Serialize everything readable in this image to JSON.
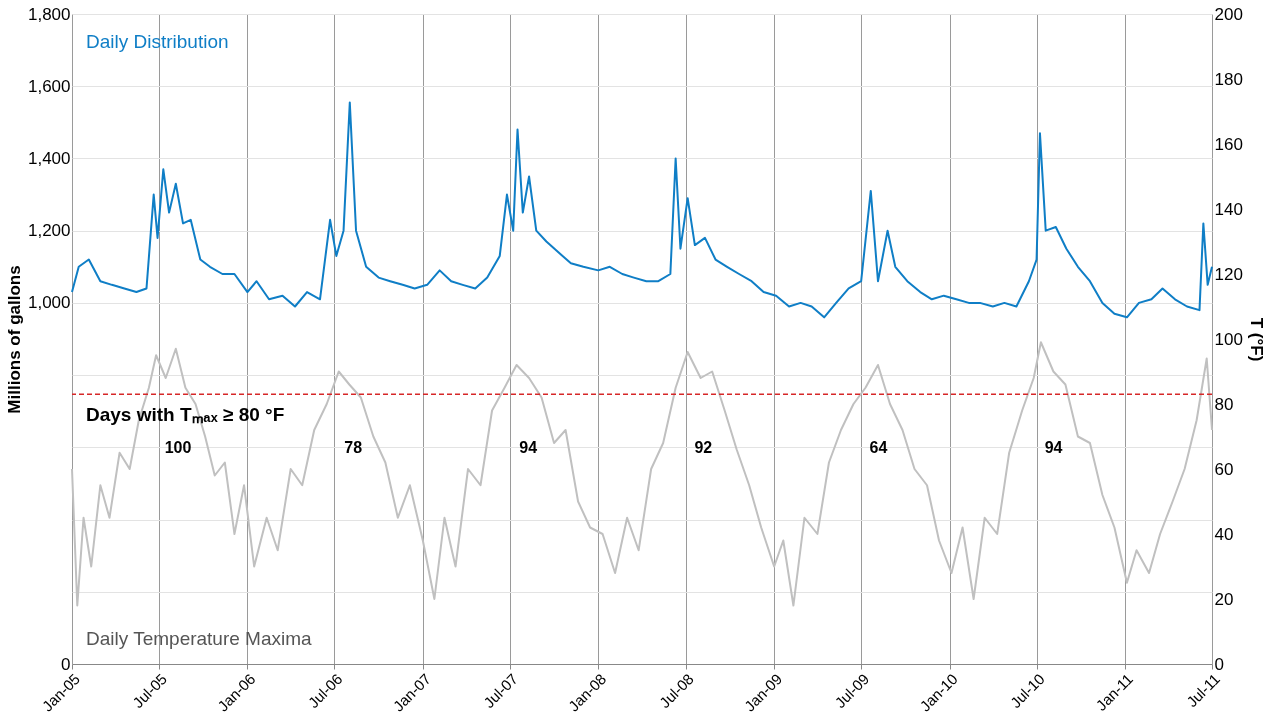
{
  "chart_data": {
    "type": "line",
    "xlabel": null,
    "ylabel": "Millions of gallons",
    "y2label": "T (°F)",
    "xlim": [
      "2005-01-01",
      "2011-07-01"
    ],
    "xticks": [
      {
        "value": "2005-01-01",
        "label": "Jan-05"
      },
      {
        "value": "2005-07-01",
        "label": "Jul-05"
      },
      {
        "value": "2006-01-01",
        "label": "Jan-06"
      },
      {
        "value": "2006-07-01",
        "label": "Jul-06"
      },
      {
        "value": "2007-01-01",
        "label": "Jan-07"
      },
      {
        "value": "2007-07-01",
        "label": "Jul-07"
      },
      {
        "value": "2008-01-01",
        "label": "Jan-08"
      },
      {
        "value": "2008-07-01",
        "label": "Jul-08"
      },
      {
        "value": "2009-01-01",
        "label": "Jan-09"
      },
      {
        "value": "2009-07-01",
        "label": "Jul-09"
      },
      {
        "value": "2010-01-01",
        "label": "Jan-10"
      },
      {
        "value": "2010-07-01",
        "label": "Jul-10"
      },
      {
        "value": "2011-01-01",
        "label": "Jan-11"
      },
      {
        "value": "2011-07-01",
        "label": "Jul-11"
      }
    ],
    "ylim": [
      0,
      1800
    ],
    "yticks": [
      0,
      {
        "value": 200,
        "label": null
      },
      {
        "value": 400,
        "label": null
      },
      {
        "value": 600,
        "label": null
      },
      {
        "value": 800,
        "label": null
      },
      {
        "value": 1000,
        "label": "1,000"
      },
      {
        "value": 1200,
        "label": "1,200"
      },
      {
        "value": 1400,
        "label": "1,400"
      },
      {
        "value": 1600,
        "label": "1,600"
      },
      {
        "value": 1800,
        "label": "1,800"
      }
    ],
    "y2lim": [
      0,
      200
    ],
    "y2ticks": [
      0,
      20,
      40,
      60,
      80,
      100,
      120,
      140,
      160,
      180,
      200
    ],
    "grid": true,
    "marker": "none",
    "line_style": "solid",
    "series": [
      {
        "name": "Daily Temperature Maxima",
        "color": "#c0c0c0",
        "axis": "y2",
        "x": [
          "2005-01-01",
          "2005-01-12",
          "2005-01-25",
          "2005-02-10",
          "2005-03-01",
          "2005-03-20",
          "2005-04-10",
          "2005-05-01",
          "2005-05-20",
          "2005-06-10",
          "2005-06-25",
          "2005-07-15",
          "2005-08-05",
          "2005-08-25",
          "2005-09-15",
          "2005-10-05",
          "2005-10-25",
          "2005-11-15",
          "2005-12-05",
          "2005-12-25",
          "2006-01-15",
          "2006-02-10",
          "2006-03-05",
          "2006-04-01",
          "2006-04-25",
          "2006-05-20",
          "2006-06-15",
          "2006-07-10",
          "2006-08-01",
          "2006-08-25",
          "2006-09-20",
          "2006-10-15",
          "2006-11-10",
          "2006-12-05",
          "2007-01-01",
          "2007-01-25",
          "2007-02-15",
          "2007-03-10",
          "2007-04-05",
          "2007-05-01",
          "2007-05-25",
          "2007-06-20",
          "2007-07-15",
          "2007-08-10",
          "2007-09-05",
          "2007-10-01",
          "2007-10-25",
          "2007-11-20",
          "2007-12-15",
          "2008-01-10",
          "2008-02-05",
          "2008-03-01",
          "2008-03-25",
          "2008-04-20",
          "2008-05-15",
          "2008-06-10",
          "2008-07-05",
          "2008-08-01",
          "2008-08-25",
          "2008-09-20",
          "2008-10-15",
          "2008-11-10",
          "2008-12-05",
          "2009-01-01",
          "2009-01-20",
          "2009-02-10",
          "2009-03-05",
          "2009-04-01",
          "2009-04-25",
          "2009-05-20",
          "2009-06-15",
          "2009-07-10",
          "2009-08-05",
          "2009-08-30",
          "2009-09-25",
          "2009-10-20",
          "2009-11-15",
          "2009-12-10",
          "2010-01-05",
          "2010-01-28",
          "2010-02-20",
          "2010-03-15",
          "2010-04-10",
          "2010-05-05",
          "2010-06-01",
          "2010-06-25",
          "2010-07-10",
          "2010-08-05",
          "2010-08-30",
          "2010-09-25",
          "2010-10-20",
          "2010-11-15",
          "2010-12-10",
          "2011-01-05",
          "2011-01-25",
          "2011-02-20",
          "2011-03-15",
          "2011-04-10",
          "2011-05-05",
          "2011-05-30",
          "2011-06-20",
          "2011-07-01"
        ],
        "values": [
          60,
          18,
          45,
          30,
          55,
          45,
          65,
          60,
          75,
          85,
          95,
          88,
          97,
          85,
          80,
          70,
          58,
          62,
          40,
          55,
          30,
          45,
          35,
          60,
          55,
          72,
          80,
          90,
          86,
          82,
          70,
          62,
          45,
          55,
          38,
          20,
          45,
          30,
          60,
          55,
          78,
          85,
          92,
          88,
          82,
          68,
          72,
          50,
          42,
          40,
          28,
          45,
          35,
          60,
          68,
          85,
          96,
          88,
          90,
          78,
          66,
          55,
          42,
          30,
          38,
          18,
          45,
          40,
          62,
          72,
          80,
          85,
          92,
          80,
          72,
          60,
          55,
          38,
          28,
          42,
          20,
          45,
          40,
          65,
          78,
          88,
          99,
          90,
          86,
          70,
          68,
          52,
          42,
          25,
          35,
          28,
          40,
          50,
          60,
          75,
          94,
          72
        ]
      },
      {
        "name": "Daily Distribution",
        "color": "#0f7ec6",
        "x": [
          "2005-01-01",
          "2005-01-15",
          "2005-02-05",
          "2005-03-01",
          "2005-03-25",
          "2005-04-20",
          "2005-05-15",
          "2005-06-05",
          "2005-06-20",
          "2005-06-28",
          "2005-07-10",
          "2005-07-22",
          "2005-08-05",
          "2005-08-20",
          "2005-09-05",
          "2005-09-25",
          "2005-10-15",
          "2005-11-10",
          "2005-12-05",
          "2006-01-01",
          "2006-01-20",
          "2006-02-15",
          "2006-03-15",
          "2006-04-10",
          "2006-05-05",
          "2006-06-01",
          "2006-06-22",
          "2006-07-05",
          "2006-07-20",
          "2006-08-02",
          "2006-08-15",
          "2006-09-05",
          "2006-10-01",
          "2006-10-25",
          "2006-11-20",
          "2006-12-15",
          "2007-01-10",
          "2007-02-05",
          "2007-03-01",
          "2007-03-25",
          "2007-04-20",
          "2007-05-15",
          "2007-06-10",
          "2007-06-25",
          "2007-07-08",
          "2007-07-17",
          "2007-07-28",
          "2007-08-10",
          "2007-08-25",
          "2007-09-15",
          "2007-10-10",
          "2007-11-05",
          "2007-12-01",
          "2008-01-01",
          "2008-01-25",
          "2008-02-20",
          "2008-03-15",
          "2008-04-10",
          "2008-05-05",
          "2008-05-30",
          "2008-06-10",
          "2008-06-20",
          "2008-07-05",
          "2008-07-20",
          "2008-08-10",
          "2008-09-01",
          "2008-09-25",
          "2008-10-20",
          "2008-11-15",
          "2008-12-10",
          "2009-01-05",
          "2009-02-01",
          "2009-02-25",
          "2009-03-20",
          "2009-04-15",
          "2009-05-10",
          "2009-06-05",
          "2009-07-01",
          "2009-07-21",
          "2009-08-05",
          "2009-08-25",
          "2009-09-10",
          "2009-10-05",
          "2009-11-01",
          "2009-11-25",
          "2009-12-20",
          "2010-01-15",
          "2010-02-10",
          "2010-03-05",
          "2010-04-01",
          "2010-04-25",
          "2010-05-20",
          "2010-06-15",
          "2010-07-01",
          "2010-07-08",
          "2010-07-20",
          "2010-08-10",
          "2010-09-01",
          "2010-09-25",
          "2010-10-20",
          "2010-11-15",
          "2010-12-10",
          "2011-01-05",
          "2011-01-30",
          "2011-02-25",
          "2011-03-20",
          "2011-04-15",
          "2011-05-10",
          "2011-06-05",
          "2011-06-13",
          "2011-06-22",
          "2011-07-01"
        ],
        "values": [
          1030,
          1100,
          1120,
          1060,
          1050,
          1040,
          1030,
          1040,
          1300,
          1180,
          1370,
          1250,
          1330,
          1220,
          1230,
          1120,
          1100,
          1080,
          1080,
          1030,
          1060,
          1010,
          1020,
          990,
          1030,
          1010,
          1230,
          1130,
          1200,
          1555,
          1200,
          1100,
          1070,
          1060,
          1050,
          1040,
          1050,
          1090,
          1060,
          1050,
          1040,
          1070,
          1130,
          1300,
          1200,
          1480,
          1250,
          1350,
          1200,
          1170,
          1140,
          1110,
          1100,
          1090,
          1100,
          1080,
          1070,
          1060,
          1060,
          1080,
          1400,
          1150,
          1290,
          1160,
          1180,
          1120,
          1100,
          1080,
          1060,
          1030,
          1020,
          990,
          1000,
          990,
          960,
          1000,
          1040,
          1060,
          1310,
          1060,
          1200,
          1100,
          1060,
          1030,
          1010,
          1020,
          1010,
          1000,
          1000,
          990,
          1000,
          990,
          1060,
          1120,
          1470,
          1200,
          1210,
          1150,
          1100,
          1060,
          1000,
          970,
          960,
          1000,
          1010,
          1040,
          1010,
          990,
          980,
          1220,
          1050,
          1100
        ]
      }
    ],
    "ref_lines": [
      {
        "axis": "y2",
        "value": 83,
        "color": "#d62728",
        "line_style": "dashed",
        "label": "Days with Tₘₐₓ ≥ 80 °F"
      }
    ],
    "annotations": [
      "100",
      "78",
      "94",
      "92",
      "64",
      "94"
    ]
  }
}
